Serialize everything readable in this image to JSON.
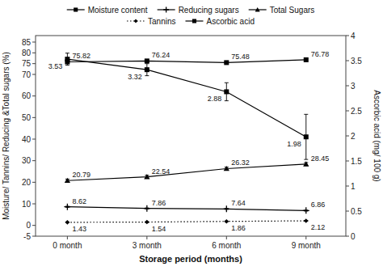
{
  "chart_data": {
    "type": "line",
    "xlabel": "Storage period (months)",
    "ylabel": "Moisture/ Tannins/ Reducing &Total sugars (%)",
    "y2label": "Ascorbic acid (mg/ 100 g)",
    "categories": [
      "0 month",
      "3 month",
      "6 month",
      "9 month"
    ],
    "series": [
      {
        "name": "Moisture content",
        "values": [
          75.82,
          76.24,
          75.48,
          76.78
        ],
        "errors": [
          0.4,
          0.4,
          0.4,
          0.4
        ],
        "color": "#000000",
        "marker": "square",
        "line_style": "solid"
      },
      {
        "name": "Reducing sugars",
        "values": [
          8.62,
          7.86,
          7.64,
          6.86
        ],
        "errors": [
          0.25,
          0.25,
          0.25,
          0.25
        ],
        "color": "#000000",
        "marker": "plus",
        "line_style": "solid"
      },
      {
        "name": "Total Sugars",
        "values": [
          20.79,
          22.54,
          26.32,
          28.45
        ],
        "errors": [
          0.7,
          0.7,
          0.7,
          0.7
        ],
        "color": "#000000",
        "marker": "triangle",
        "line_style": "solid"
      },
      {
        "name": "Tannins",
        "values": [
          1.43,
          1.54,
          1.86,
          2.12
        ],
        "errors": [
          0.12,
          0.12,
          0.12,
          0.12
        ],
        "color": "#000000",
        "marker": "diamond",
        "line_style": "dotted"
      },
      {
        "name": "Ascorbic acid",
        "values": [
          3.53,
          3.32,
          2.88,
          1.98
        ],
        "errors": [
          0.12,
          0.12,
          0.18,
          0.45
        ],
        "color": "#000000",
        "marker": "square",
        "line_style": "solid",
        "axis": "y2"
      }
    ],
    "ylim": [
      -5,
      88
    ],
    "yticks": [
      -5,
      0,
      10,
      20,
      30,
      40,
      50,
      60,
      70,
      75,
      80,
      85
    ],
    "y2lim": [
      0,
      4.0
    ],
    "y2ticks": [
      0,
      0.5,
      1.0,
      1.5,
      2.0,
      2.5,
      3.0,
      3.5,
      4.0
    ],
    "grid": false,
    "legend": "top",
    "data_labels": true
  }
}
